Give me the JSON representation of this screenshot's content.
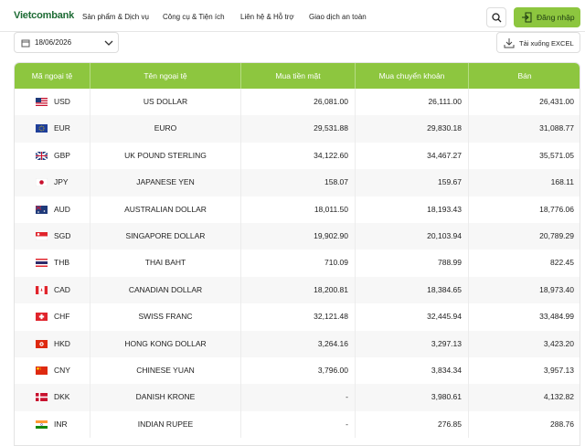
{
  "header": {
    "logo": "Vietcombank",
    "menu": [
      "Sản phẩm & Dịch vụ",
      "Công cụ & Tiện ích",
      "Liên hệ & Hỗ trợ",
      "Giao dịch an toàn"
    ],
    "login": "Đăng nhập"
  },
  "toolbar": {
    "date": "18/06/2026",
    "download": "Tải xuống EXCEL"
  },
  "table": {
    "columns": [
      "Mã ngoại tệ",
      "Tên ngoại tệ",
      "Mua tiền mặt",
      "Mua chuyển khoản",
      "Bán"
    ],
    "rows": [
      [
        "USD",
        "US DOLLAR",
        "26,081.00",
        "26,111.00",
        "26,431.00"
      ],
      [
        "EUR",
        "EURO",
        "29,531.88",
        "29,830.18",
        "31,088.77"
      ],
      [
        "GBP",
        "UK POUND STERLING",
        "34,122.60",
        "34,467.27",
        "35,571.05"
      ],
      [
        "JPY",
        "JAPANESE YEN",
        "158.07",
        "159.67",
        "168.11"
      ],
      [
        "AUD",
        "AUSTRALIAN DOLLAR",
        "18,011.50",
        "18,193.43",
        "18,776.06"
      ],
      [
        "SGD",
        "SINGAPORE DOLLAR",
        "19,902.90",
        "20,103.94",
        "20,789.29"
      ],
      [
        "THB",
        "THAI BAHT",
        "710.09",
        "788.99",
        "822.45"
      ],
      [
        "CAD",
        "CANADIAN DOLLAR",
        "18,200.81",
        "18,384.65",
        "18,973.40"
      ],
      [
        "CHF",
        "SWISS FRANC",
        "32,121.48",
        "32,445.94",
        "33,484.99"
      ],
      [
        "HKD",
        "HONG KONG DOLLAR",
        "3,264.16",
        "3,297.13",
        "3,423.20"
      ],
      [
        "CNY",
        "CHINESE YUAN",
        "3,796.00",
        "3,834.34",
        "3,957.13"
      ],
      [
        "DKK",
        "DANISH KRONE",
        "-",
        "3,980.61",
        "4,132.82"
      ],
      [
        "INR",
        "INDIAN RUPEE",
        "-",
        "276.85",
        "288.76"
      ]
    ]
  }
}
